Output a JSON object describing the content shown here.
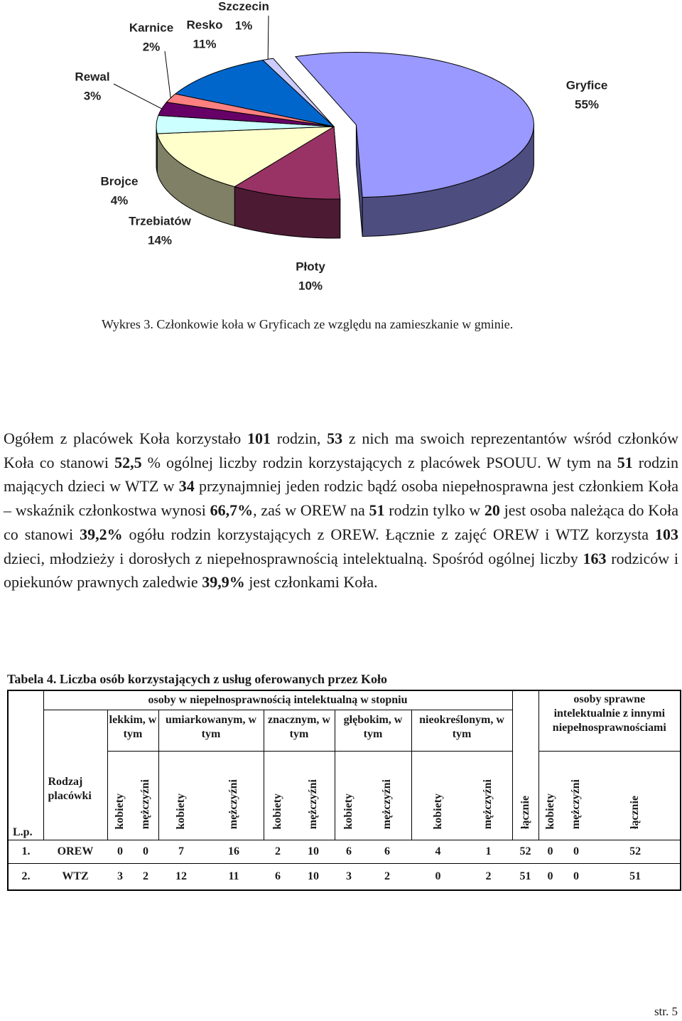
{
  "chart_data": {
    "type": "pie",
    "categories": [
      "Gryfice",
      "Płoty",
      "Trzebiatów",
      "Brojce",
      "Rewal",
      "Karnice",
      "Resko",
      "Szczecin"
    ],
    "values": [
      55,
      10,
      14,
      4,
      3,
      2,
      11,
      1
    ],
    "value_labels": [
      "55%",
      "10%",
      "14%",
      "4%",
      "3%",
      "2%",
      "11%",
      "1%"
    ],
    "colors": [
      "#9999ff",
      "#993366",
      "#ffffcc",
      "#ccffff",
      "#660066",
      "#ff8080",
      "#0066cc",
      "#ccccff"
    ]
  },
  "caption": "Wykres 3. Członkowie koła w Gryficach ze względu na zamieszkanie w gminie.",
  "paragraph": [
    "Ogółem z placówek Koła korzystało ",
    "101",
    " rodzin, ",
    "53",
    " z nich ma swoich reprezentantów wśród członków Koła co stanowi ",
    "52,5",
    " % ogólnej liczby rodzin korzystających z placówek PSOUU. W tym na ",
    "51",
    " rodzin mających dzieci w WTZ w ",
    "34",
    " przynajmniej jeden rodzic bądź osoba niepełnosprawna jest członkiem Koła – wskaźnik członkostwa wynosi ",
    "66,7%",
    ", zaś w OREW na ",
    "51",
    " rodzin tylko w ",
    "20",
    " jest osoba należąca do Koła co stanowi ",
    "39,2%",
    " ogółu rodzin korzystających z OREW. Łącznie z zajęć OREW i WTZ korzysta ",
    "103",
    " dzieci, młodzieży i dorosłych z niepełnosprawnością intelektualną. Spośród ogólnej liczby ",
    "163",
    " rodziców i opiekunów prawnych zaledwie ",
    "39,9%",
    " jest członkami Koła."
  ],
  "table": {
    "title": "Tabela 4. Liczba osób korzystających z usług oferowanych przez Koło",
    "header": {
      "lp": "L.p.",
      "type": "Rodzaj placówki",
      "group1": "osoby w niepełnosprawnością intelektualną w stopniu",
      "degrees": [
        "lekkim, w tym",
        "umiarkowanym, w tym",
        "znacznym, w tym",
        "głębokim, w tym",
        "nieokreślonym, w tym"
      ],
      "total": "łącznie",
      "group2": "osoby sprawne intelektualnie z innymi niepełnosprawnościami",
      "subcolumns": [
        "kobiety",
        "mężczyźni",
        "kobiety",
        "mężczyźni",
        "kobiety",
        "mężczyźni",
        "kobiety",
        "mężczyźni",
        "kobiety",
        "mężczyźni"
      ],
      "group2_subcolumns": [
        "kobiety",
        "mężczyźni",
        "łącznie"
      ]
    },
    "rows": [
      [
        "1.",
        "OREW",
        0,
        0,
        7,
        16,
        2,
        10,
        6,
        6,
        4,
        1,
        52,
        0,
        0,
        52
      ],
      [
        "2.",
        "WTZ",
        3,
        2,
        12,
        11,
        6,
        10,
        3,
        2,
        0,
        2,
        51,
        0,
        0,
        51
      ]
    ]
  },
  "page_number": "str. 5"
}
